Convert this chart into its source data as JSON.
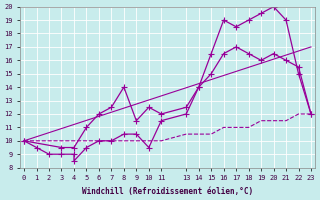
{
  "xlabel": "Windchill (Refroidissement éolien,°C)",
  "ylabel": "",
  "bg_color": "#c8ecec",
  "line_color": "#990099",
  "grid_color": "#ffffff",
  "xmin": 0,
  "xmax": 23,
  "ymin": 8,
  "ymax": 20,
  "xticks": [
    0,
    1,
    2,
    3,
    4,
    5,
    6,
    7,
    8,
    9,
    10,
    11,
    13,
    14,
    15,
    16,
    17,
    18,
    19,
    20,
    21,
    22,
    23
  ],
  "yticks": [
    8,
    9,
    10,
    11,
    12,
    13,
    14,
    15,
    16,
    17,
    18,
    19,
    20
  ],
  "line1_x": [
    0,
    1,
    2,
    3,
    4,
    4,
    5,
    6,
    7,
    8,
    9,
    10,
    11,
    13,
    14,
    15,
    16,
    17,
    18,
    19,
    20,
    21,
    22,
    23
  ],
  "line1_y": [
    10,
    9.5,
    9,
    9,
    9,
    8.5,
    9.5,
    10,
    10,
    10.5,
    10.5,
    9.5,
    11.5,
    12,
    14,
    16.5,
    19,
    18.5,
    19,
    19.5,
    20,
    19,
    15,
    12
  ],
  "line2_x": [
    0,
    3,
    4,
    5,
    6,
    7,
    8,
    9,
    10,
    11,
    13,
    14,
    15,
    16,
    17,
    18,
    19,
    20,
    21,
    22,
    23
  ],
  "line2_y": [
    10,
    9.5,
    9.5,
    11,
    12,
    12.5,
    14,
    11.5,
    12.5,
    12,
    12.5,
    14,
    15,
    16.5,
    17,
    16.5,
    16,
    16.5,
    16,
    15.5,
    12
  ],
  "line3_x": [
    0,
    23
  ],
  "line3_y": [
    10,
    17
  ],
  "line4_x": [
    0,
    1,
    2,
    3,
    4,
    5,
    6,
    7,
    8,
    9,
    10,
    11,
    13,
    14,
    15,
    16,
    17,
    18,
    19,
    20,
    21,
    22,
    23
  ],
  "line4_y": [
    10,
    10,
    10,
    10,
    10,
    10,
    10,
    10,
    10,
    10,
    10,
    10,
    10.5,
    10.5,
    10.5,
    11,
    11,
    11,
    11.5,
    11.5,
    11.5,
    12,
    12
  ]
}
